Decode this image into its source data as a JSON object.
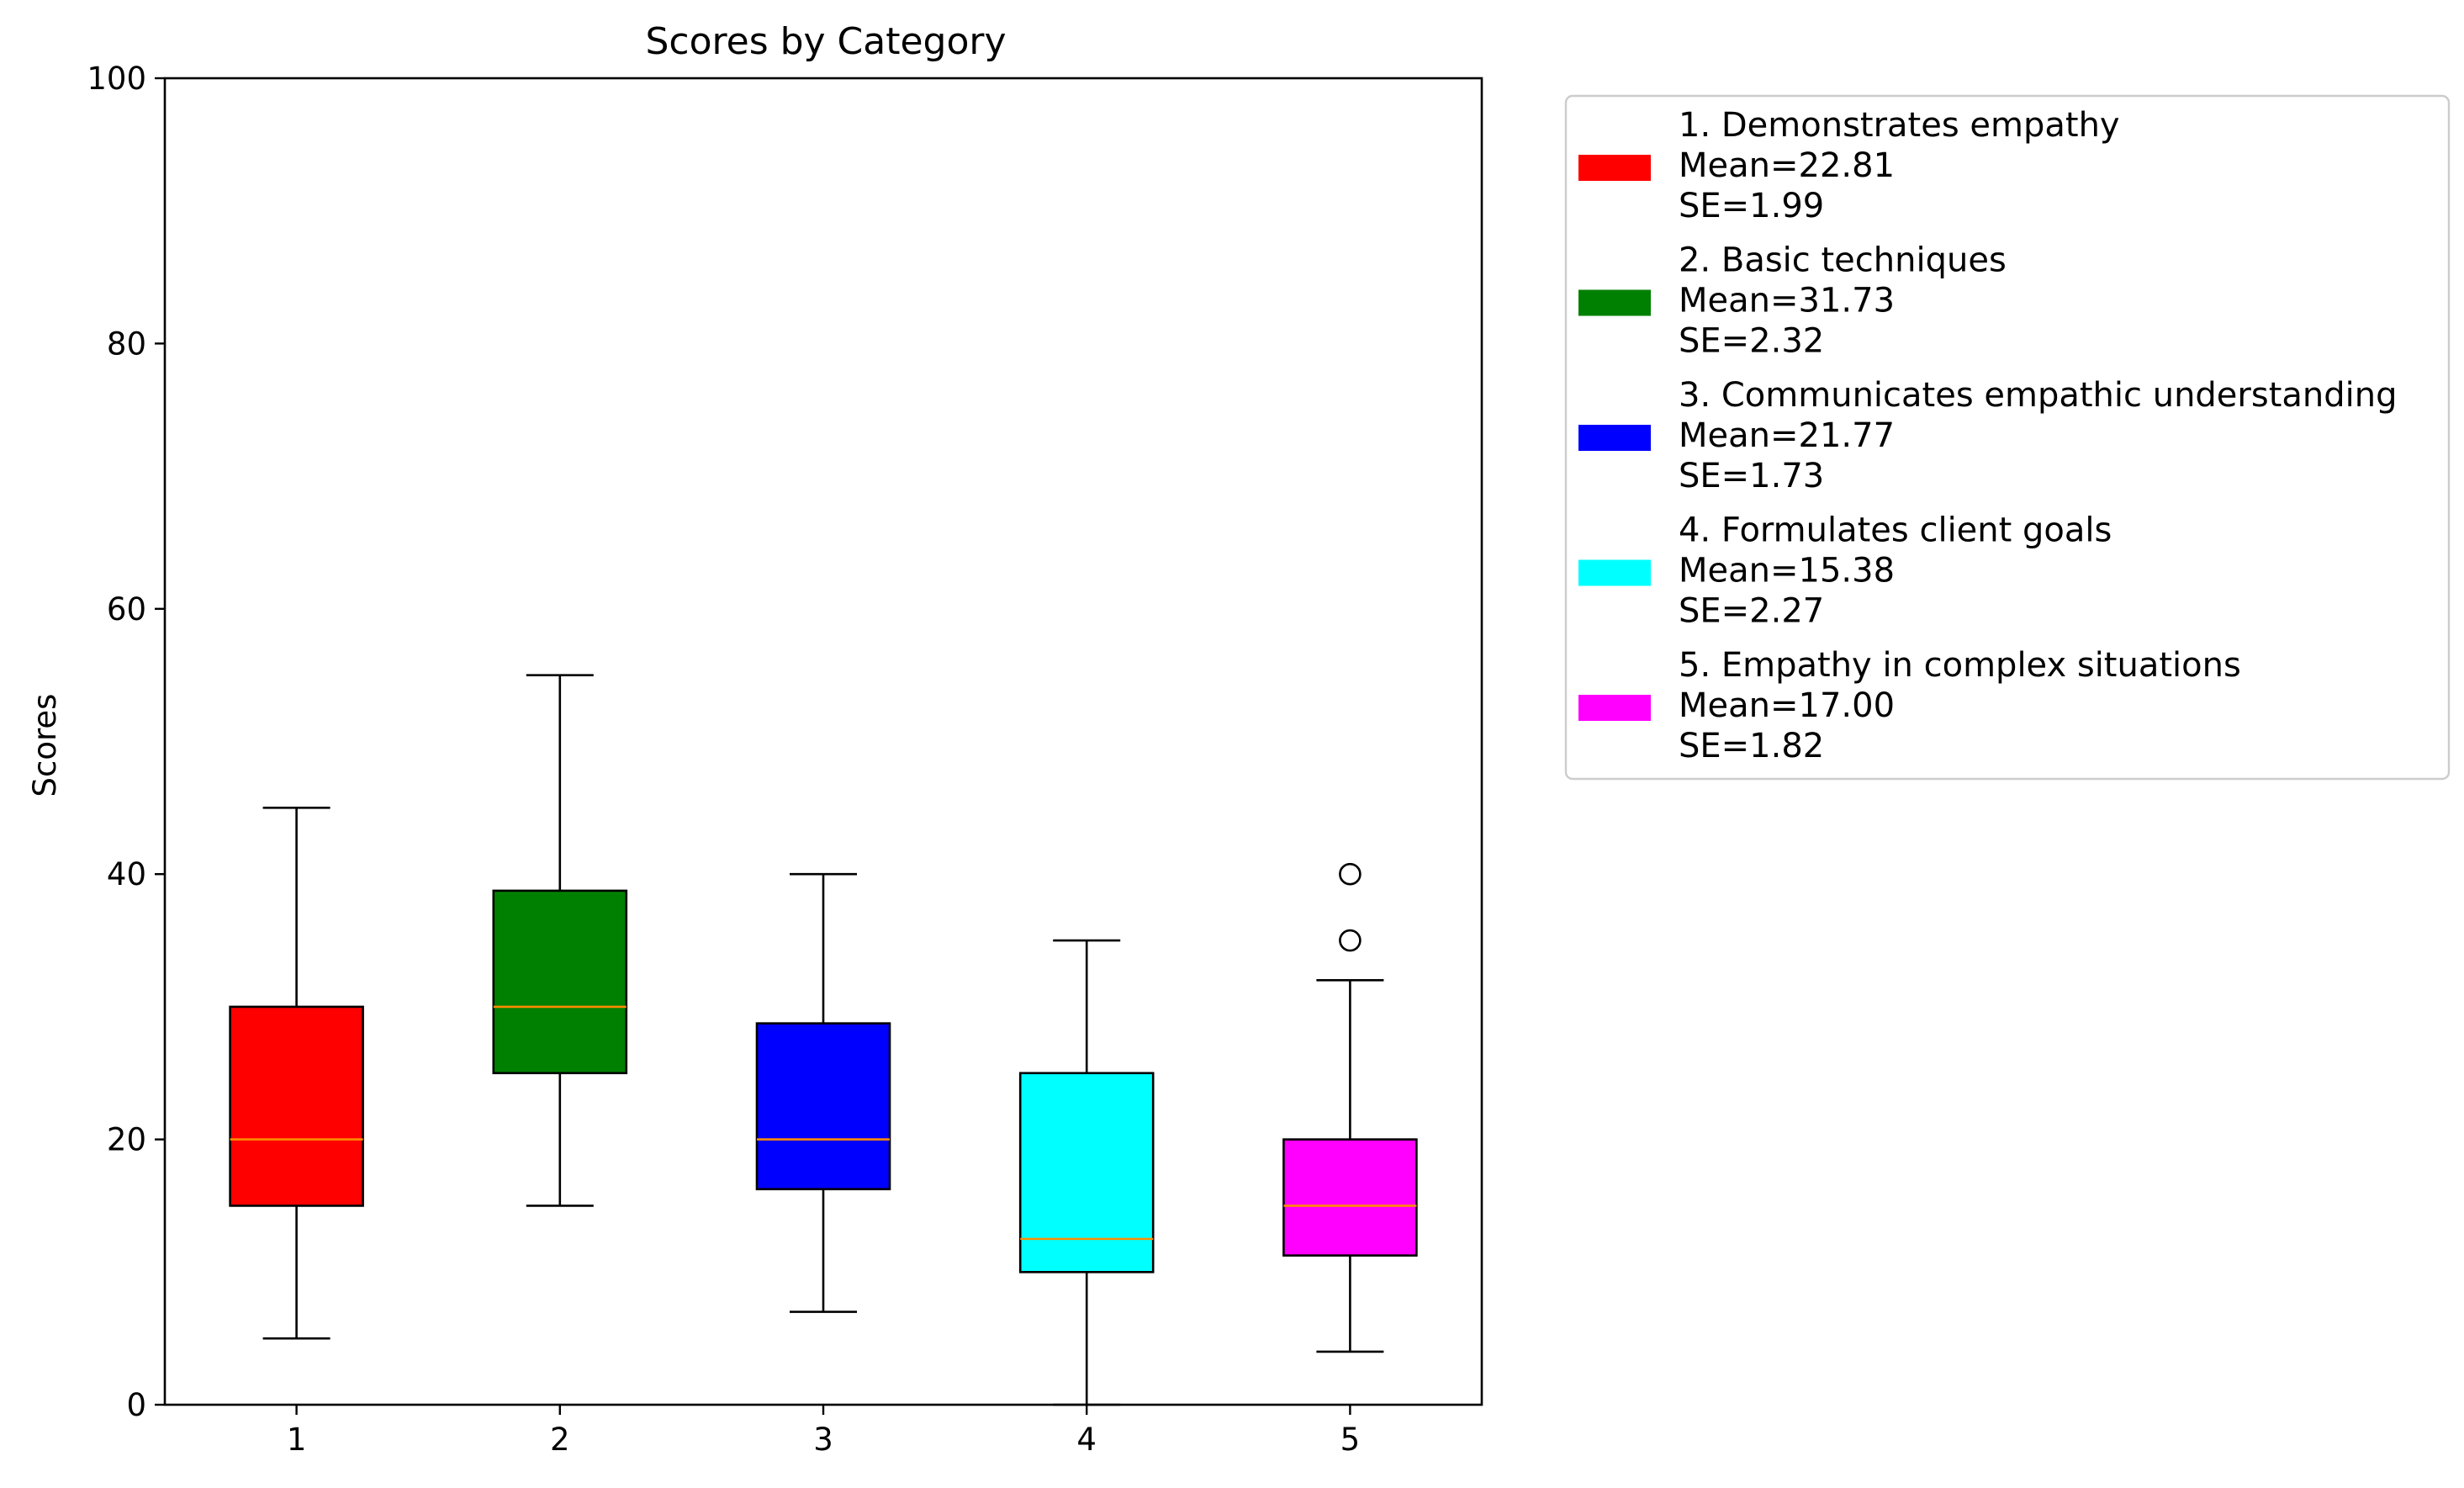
{
  "chart_data": {
    "type": "box",
    "title": "Scores by Category",
    "xlabel": "",
    "ylabel": "Scores",
    "ylim": [
      0,
      100
    ],
    "yticks": [
      0,
      20,
      40,
      60,
      80,
      100
    ],
    "categories": [
      "1",
      "2",
      "3",
      "4",
      "5"
    ],
    "grid": false,
    "legend_position": "outside-right-top",
    "median_color": "#ff8c00",
    "series": [
      {
        "category": "1",
        "color": "#ff0000",
        "whisker_low": 5,
        "q1": 15,
        "median": 20,
        "q3": 30,
        "whisker_high": 45,
        "outliers": [],
        "legend": [
          "1. Demonstrates empathy",
          "Mean=22.81",
          "SE=1.99"
        ]
      },
      {
        "category": "2",
        "color": "#008000",
        "whisker_low": 15,
        "q1": 25,
        "median": 30,
        "q3": 38.75,
        "whisker_high": 55,
        "outliers": [],
        "legend": [
          "2. Basic techniques",
          "Mean=31.73",
          "SE=2.32"
        ]
      },
      {
        "category": "3",
        "color": "#0000ff",
        "whisker_low": 7,
        "q1": 16.25,
        "median": 20,
        "q3": 28.75,
        "whisker_high": 40,
        "outliers": [],
        "legend": [
          "3. Communicates empathic understanding",
          "Mean=21.77",
          "SE=1.73"
        ]
      },
      {
        "category": "4",
        "color": "#00ffff",
        "whisker_low": 0,
        "q1": 10,
        "median": 12.5,
        "q3": 25,
        "whisker_high": 35,
        "outliers": [],
        "legend": [
          "4. Formulates client goals",
          "Mean=15.38",
          "SE=2.27"
        ]
      },
      {
        "category": "5",
        "color": "#ff00ff",
        "whisker_low": 4,
        "q1": 11.25,
        "median": 15,
        "q3": 20,
        "whisker_high": 32,
        "outliers": [
          35,
          40
        ],
        "legend": [
          "5. Empathy in complex situations",
          "Mean=17.00",
          "SE=1.82"
        ]
      }
    ]
  }
}
